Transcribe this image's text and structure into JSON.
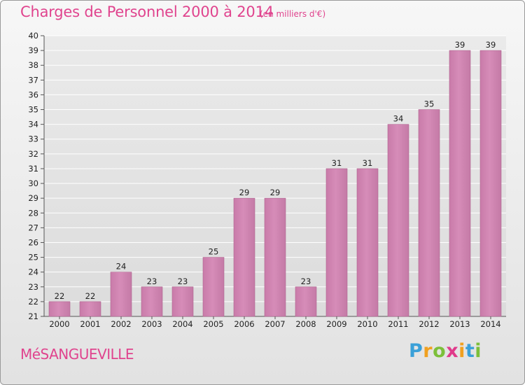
{
  "header": {
    "title": "Charges de Personnel 2000 à 2014",
    "subtitle": "(en milliers d'€)"
  },
  "footer": {
    "commune": "MéSANGUEVILLE",
    "logo_letters": [
      {
        "ch": "P",
        "color": "#3aa0d8"
      },
      {
        "ch": "r",
        "color": "#f0a020"
      },
      {
        "ch": "o",
        "color": "#7cbf3a"
      },
      {
        "ch": "x",
        "color": "#e03a8a"
      },
      {
        "ch": "i",
        "color": "#f0a020"
      },
      {
        "ch": "t",
        "color": "#3aa0d8"
      },
      {
        "ch": "i",
        "color": "#7cbf3a"
      }
    ]
  },
  "colors": {
    "bar_fill": "#d68cb8",
    "bar_edge": "#b0658f",
    "title": "#e0448e",
    "grid": "#ffffff"
  },
  "chart_data": {
    "type": "bar",
    "categories": [
      "2000",
      "2001",
      "2002",
      "2003",
      "2004",
      "2005",
      "2006",
      "2007",
      "2008",
      "2009",
      "2010",
      "2011",
      "2012",
      "2013",
      "2014"
    ],
    "values": [
      22,
      22,
      24,
      23,
      23,
      25,
      29,
      29,
      23,
      31,
      31,
      34,
      35,
      39,
      39
    ],
    "title": "Charges de Personnel 2000 à 2014",
    "subtitle": "(en milliers d'€)",
    "xlabel": "",
    "ylabel": "",
    "ylim": [
      21,
      40
    ],
    "yticks": [
      21,
      22,
      23,
      24,
      25,
      26,
      27,
      28,
      29,
      30,
      31,
      32,
      33,
      34,
      35,
      36,
      37,
      38,
      39,
      40
    ],
    "grid": true,
    "data_labels": true
  }
}
